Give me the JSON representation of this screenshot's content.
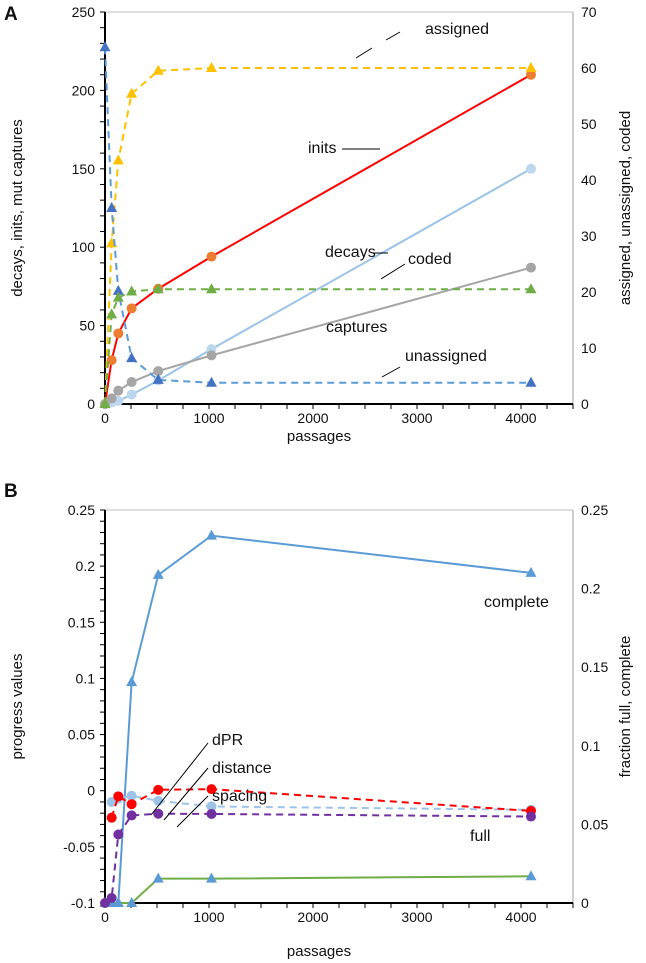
{
  "chart_data": [
    {
      "panel_label": "A",
      "type": "line",
      "xlabel": "passages",
      "ylabel": "decays, inits, mut captures",
      "ylabel_right": "assigned, unassigned, coded",
      "xlim": [
        0,
        4500
      ],
      "xticks": [
        0,
        1000,
        2000,
        3000,
        4000
      ],
      "ylim": [
        0,
        250
      ],
      "yticks": [
        0,
        50,
        100,
        150,
        200,
        250
      ],
      "ylim_right": [
        0,
        70
      ],
      "yticks_right": [
        0,
        10,
        20,
        30,
        40,
        50,
        60,
        70
      ],
      "x": [
        0,
        64,
        128,
        256,
        512,
        1024,
        4096
      ],
      "series": [
        {
          "name": "inits",
          "axis": "left",
          "color": "#ff0000",
          "marker_color": "#ed7d31",
          "marker": "circle",
          "dashed": false,
          "values": [
            0,
            28,
            45,
            61,
            73.5,
            94,
            210
          ]
        },
        {
          "name": "decays",
          "axis": "left",
          "color": "#9dc3e6",
          "marker_color": "#bdd7ee",
          "marker": "circle",
          "dashed": false,
          "values": [
            0,
            1,
            2,
            6,
            15,
            35,
            150
          ]
        },
        {
          "name": "captures",
          "axis": "left",
          "color": "#a5a5a5",
          "marker_color": "#a5a5a5",
          "marker": "circle",
          "dashed": false,
          "values": [
            0,
            3.6,
            8.5,
            14,
            21,
            31,
            87
          ]
        },
        {
          "name": "assigned",
          "axis": "right",
          "color": "#ffc000",
          "marker_color": "#ffc000",
          "marker": "triangle",
          "dashed": true,
          "values": [
            0,
            28.7,
            43.5,
            55.4,
            59.5,
            60,
            60
          ]
        },
        {
          "name": "unassigned",
          "axis": "right",
          "color": "#5b9bd5",
          "marker_color": "#4472c4",
          "marker": "triangle",
          "dashed": true,
          "values": [
            63.7,
            35,
            20.2,
            8.2,
            4.3,
            3.8,
            3.8
          ]
        },
        {
          "name": "coded",
          "axis": "right",
          "color": "#70ad47",
          "marker_color": "#70ad47",
          "marker": "triangle",
          "dashed": true,
          "values": [
            0,
            16,
            19,
            20.1,
            20.5,
            20.5,
            20.5
          ]
        }
      ],
      "annotations": [
        "assigned",
        "inits",
        "decays",
        "coded",
        "captures",
        "unassigned"
      ]
    },
    {
      "panel_label": "B",
      "type": "line",
      "xlabel": "passages",
      "ylabel": "progress values",
      "ylabel_right": "fraction full, complete",
      "xlim": [
        0,
        4500
      ],
      "xticks": [
        0,
        1000,
        2000,
        3000,
        4000
      ],
      "ylim": [
        -0.1,
        0.25
      ],
      "yticks": [
        -0.1,
        -0.05,
        0,
        0.05,
        0.1,
        0.15,
        0.2,
        0.25
      ],
      "ylim_right": [
        0,
        0.25
      ],
      "yticks_right": [
        0,
        0.05,
        0.1,
        0.15,
        0.2,
        0.25
      ],
      "x": [
        0,
        64,
        128,
        256,
        512,
        1024,
        4096
      ],
      "series": [
        {
          "name": "complete",
          "axis": "right",
          "color": "#5b9bd5",
          "marker_color": "#5b9bd5",
          "marker": "triangle",
          "dashed": false,
          "values": [
            0,
            0,
            0,
            0.1405,
            0.2087,
            0.2337,
            0.21
          ]
        },
        {
          "name": "full",
          "axis": "right",
          "color": "#70ad47",
          "marker_color": "#5b9bd5",
          "marker": "triangle",
          "dashed": false,
          "values": [
            0,
            0,
            0,
            0,
            0.0155,
            0.0155,
            0.017
          ]
        },
        {
          "name": "distance",
          "axis": "left",
          "color": "#9dc3e6",
          "marker_color": "#9dc3e6",
          "marker": "circle",
          "dashed": true,
          "values": [
            null,
            -0.01,
            -0.007,
            -0.0045,
            -0.009,
            -0.014,
            -0.017
          ]
        },
        {
          "name": "dPR",
          "axis": "left",
          "color": "#ff0000",
          "marker_color": "#ff0000",
          "marker": "circle",
          "dashed": true,
          "values": [
            null,
            -0.024,
            -0.005,
            -0.012,
            0.0008,
            0.0014,
            -0.018
          ]
        },
        {
          "name": "spacing",
          "axis": "left",
          "color": "#7030a0",
          "marker_color": "#7030a0",
          "marker": "circle",
          "dashed": true,
          "values": [
            -0.1,
            -0.0955,
            -0.039,
            -0.022,
            -0.0205,
            -0.0207,
            -0.023
          ]
        }
      ],
      "annotations": [
        "complete",
        "dPR",
        "distance",
        "spacing",
        "full"
      ]
    }
  ]
}
